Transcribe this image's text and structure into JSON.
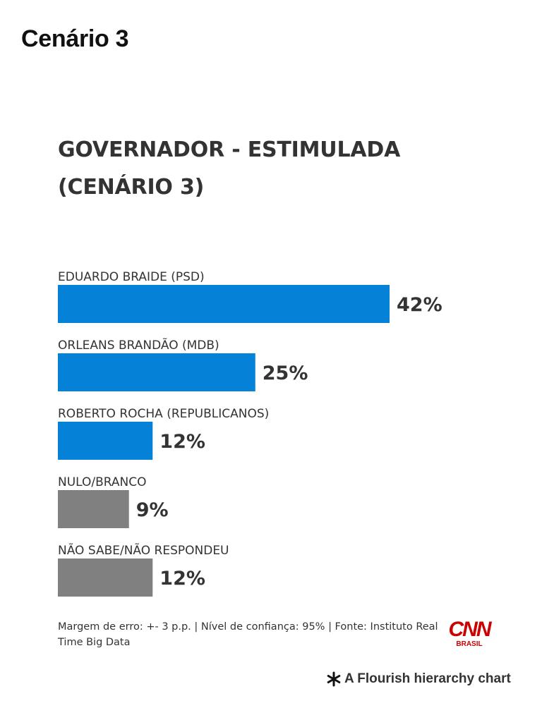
{
  "page": {
    "title": "Cenário 3"
  },
  "chart_data": {
    "type": "bar",
    "orientation": "horizontal",
    "title": "GOVERNADOR - ESTIMULADA (CENÁRIO 3)",
    "categories": [
      "EDUARDO BRAIDE (PSD)",
      "ORLEANS BRANDÃO (MDB)",
      "ROBERTO ROCHA (REPUBLICANOS)",
      "NULO/BRANCO",
      "NÃO SABE/NÃO RESPONDEU"
    ],
    "values": [
      42,
      25,
      12,
      9,
      12
    ],
    "value_labels": [
      "42%",
      "25%",
      "12%",
      "9%",
      "12%"
    ],
    "colors": [
      "#0681d8",
      "#0681d8",
      "#0681d8",
      "#808080",
      "#808080"
    ],
    "unit": "%",
    "xlim": [
      0,
      42
    ],
    "grid": false,
    "legend": "none"
  },
  "footer": {
    "note": "Margem de erro: +- 3 p.p. | Nível de confiança: 95% | Fonte: Instituto Real Time Big Data",
    "logo_text": "CNN",
    "logo_subtext": "BRASIL",
    "logo_color": "#cc0000"
  },
  "attribution": {
    "text": "A Flourish hierarchy chart",
    "icon": "flourish-asterisk-icon"
  }
}
